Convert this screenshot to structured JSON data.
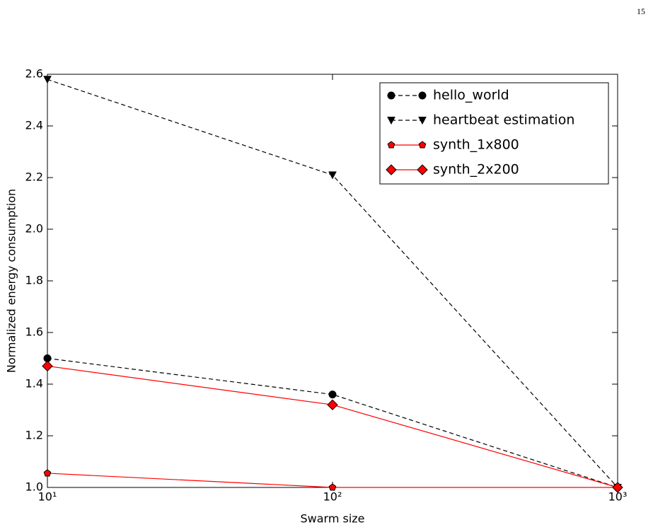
{
  "page_number": "15",
  "chart_data": {
    "type": "line",
    "x_label": "Swarm size",
    "y_label": "Normalized energy consumption",
    "x": [
      10,
      100,
      1000
    ],
    "xscale": "log",
    "xlim": [
      10,
      1000
    ],
    "xticks": [
      {
        "value": 10,
        "label": "10¹"
      },
      {
        "value": 100,
        "label": "10²"
      },
      {
        "value": 1000,
        "label": "10³"
      }
    ],
    "ylim": [
      1.0,
      2.6
    ],
    "yticks": [
      {
        "value": 1,
        "label": "1.0"
      },
      1.2,
      1.4,
      1.6,
      1.8,
      {
        "value": 2,
        "label": "2.0"
      },
      2.2,
      2.4,
      2.6
    ],
    "legend": "upper right",
    "series": [
      {
        "name": "hello_world",
        "color": "#000000",
        "linestyle": "dashed",
        "marker": "circle",
        "values": [
          1.5,
          1.36,
          1.0
        ]
      },
      {
        "name": "heartbeat estimation",
        "color": "#000000",
        "linestyle": "dashed",
        "marker": "triangle-down",
        "values": [
          2.58,
          2.21,
          1.0
        ]
      },
      {
        "name": "synth_1x800",
        "color": "#ff0000",
        "linestyle": "solid",
        "marker": "pentagon",
        "values": [
          1.055,
          1.0,
          1.0
        ]
      },
      {
        "name": "synth_2x200",
        "color": "#ff0000",
        "linestyle": "solid",
        "marker": "diamond",
        "values": [
          1.47,
          1.32,
          1.0
        ]
      }
    ]
  }
}
